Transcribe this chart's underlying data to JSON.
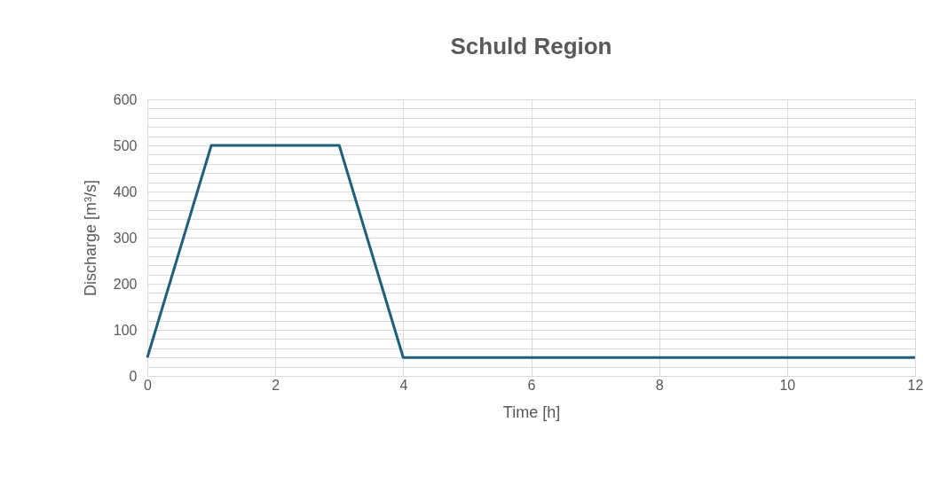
{
  "chart_data": {
    "type": "line",
    "title": "Schuld Region",
    "xlabel": "Time [h]",
    "ylabel": "Discharge [m³/s]",
    "x": [
      0,
      1,
      3,
      4,
      12
    ],
    "series": [
      {
        "color": "#1f5f7a",
        "values": [
          40,
          500,
          500,
          40,
          40
        ]
      }
    ],
    "xlim": [
      0,
      12
    ],
    "xticks": [
      0,
      2,
      4,
      6,
      8,
      10,
      12
    ],
    "ylim": [
      0,
      600
    ],
    "yticks": [
      0,
      {
        "value": 20,
        "label": null
      },
      {
        "value": 40,
        "label": null
      },
      {
        "value": 60,
        "label": null
      },
      {
        "value": 80,
        "label": null
      },
      100,
      {
        "value": 120,
        "label": null
      },
      {
        "value": 140,
        "label": null
      },
      {
        "value": 160,
        "label": null
      },
      {
        "value": 180,
        "label": null
      },
      200,
      {
        "value": 220,
        "label": null
      },
      {
        "value": 240,
        "label": null
      },
      {
        "value": 260,
        "label": null
      },
      {
        "value": 280,
        "label": null
      },
      300,
      {
        "value": 320,
        "label": null
      },
      {
        "value": 340,
        "label": null
      },
      {
        "value": 360,
        "label": null
      },
      {
        "value": 380,
        "label": null
      },
      400,
      {
        "value": 420,
        "label": null
      },
      {
        "value": 440,
        "label": null
      },
      {
        "value": 460,
        "label": null
      },
      {
        "value": 480,
        "label": null
      },
      500,
      {
        "value": 520,
        "label": null
      },
      {
        "value": 540,
        "label": null
      },
      {
        "value": 560,
        "label": null
      },
      {
        "value": 580,
        "label": null
      },
      600
    ],
    "grid": true,
    "marker": "none",
    "line_style": "solid"
  }
}
